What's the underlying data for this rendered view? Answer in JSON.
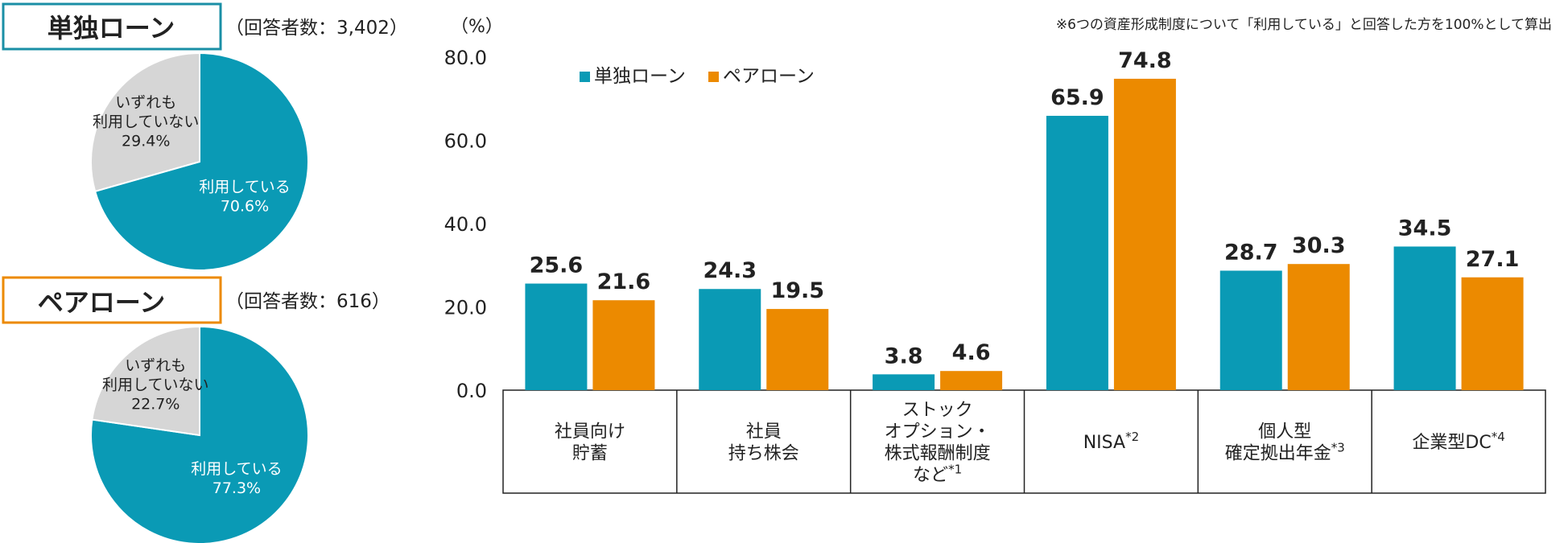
{
  "colors": {
    "single": "#0a9ab5",
    "pair": "#ec8a00",
    "not_using": "#d6d6d6",
    "text": "#222222",
    "axis": "#222222"
  },
  "pies": [
    {
      "title": "単独ローン",
      "respondents": "（回答者数：3,402）",
      "frame_color": "#1a8fa6",
      "slices": [
        {
          "label_lines": [
            "利用している",
            "70.6%"
          ],
          "value": 70.6,
          "color": "#0a9ab5"
        },
        {
          "label_lines": [
            "いずれも",
            "利用していない",
            "29.4%"
          ],
          "value": 29.4,
          "color": "#d6d6d6"
        }
      ]
    },
    {
      "title": "ペアローン",
      "respondents": "（回答者数：616）",
      "frame_color": "#ec8a00",
      "slices": [
        {
          "label_lines": [
            "利用している",
            "77.3%"
          ],
          "value": 77.3,
          "color": "#0a9ab5"
        },
        {
          "label_lines": [
            "いずれも",
            "利用していない",
            "22.7%"
          ],
          "value": 22.7,
          "color": "#d6d6d6"
        }
      ]
    }
  ],
  "chart_data": {
    "type": "bar",
    "unit_label": "（%）",
    "note": "※6つの資産形成制度について「利用している」と回答した方を100%として算出",
    "ylim": [
      0,
      80
    ],
    "yticks": [
      "0.0",
      "20.0",
      "40.0",
      "60.0",
      "80.0"
    ],
    "categories": [
      {
        "lines": [
          "社員向け",
          "貯蓄"
        ],
        "sup": ""
      },
      {
        "lines": [
          "社員",
          "持ち株会"
        ],
        "sup": ""
      },
      {
        "lines": [
          "ストック",
          "オプション・",
          "株式報酬制度",
          "など"
        ],
        "sup": "*1"
      },
      {
        "lines": [
          "NISA"
        ],
        "sup": "*2"
      },
      {
        "lines": [
          "個人型",
          "確定拠出年金"
        ],
        "sup": "*3"
      },
      {
        "lines": [
          "企業型DC"
        ],
        "sup": "*4"
      }
    ],
    "series": [
      {
        "name": "単独ローン",
        "color": "#0a9ab5",
        "values": [
          25.6,
          24.3,
          3.8,
          65.9,
          28.7,
          34.5
        ],
        "labels": [
          "25.6",
          "24.3",
          "3.8",
          "65.9",
          "28.7",
          "34.5"
        ]
      },
      {
        "name": "ペアローン",
        "color": "#ec8a00",
        "values": [
          21.6,
          19.5,
          4.6,
          74.8,
          30.3,
          27.1
        ],
        "labels": [
          "21.6",
          "19.5",
          "4.6",
          "74.8",
          "30.3",
          "27.1"
        ]
      }
    ]
  }
}
